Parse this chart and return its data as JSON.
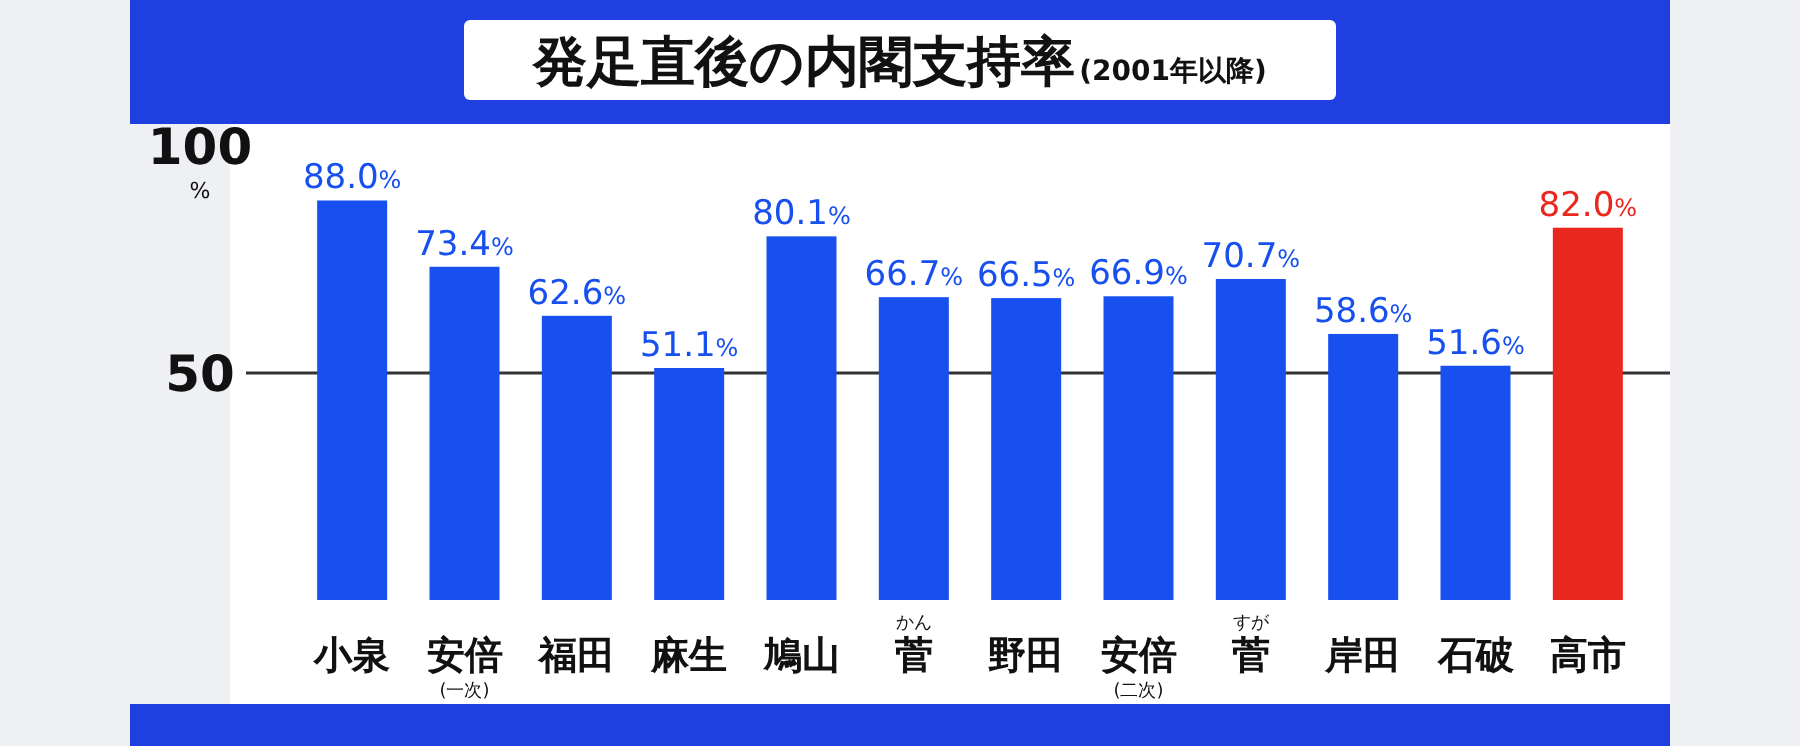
{
  "chart_data": {
    "type": "bar",
    "title": "発足直後の内閣支持率",
    "subtitle": "(2001年以降)",
    "ylabel": "%",
    "categories": [
      "小泉",
      "安倍\n(一次)",
      "福田",
      "麻生",
      "鳩山",
      "かん菅",
      "野田",
      "安倍\n(二次)",
      "すが菅",
      "岸田",
      "石破",
      "高市"
    ],
    "values": [
      88.0,
      73.4,
      62.6,
      51.1,
      80.1,
      66.7,
      66.5,
      66.9,
      70.7,
      58.6,
      51.6,
      82.0
    ],
    "colors": [
      "#1750ee",
      "#1750ee",
      "#1750ee",
      "#1750ee",
      "#1750ee",
      "#1750ee",
      "#1750ee",
      "#1750ee",
      "#1750ee",
      "#1750ee",
      "#1750ee",
      "#e8281e"
    ],
    "value_labels": [
      "88.0%",
      "73.4%",
      "62.6%",
      "51.1%",
      "80.1%",
      "66.7%",
      "66.5%",
      "66.9%",
      "70.7%",
      "58.6%",
      "51.6%",
      "82.0%"
    ],
    "ylim": [
      0,
      100
    ],
    "yticks": [
      50,
      100
    ],
    "ref_lines": [
      {
        "axis": "y",
        "value": 50,
        "color": "#333333"
      }
    ]
  }
}
